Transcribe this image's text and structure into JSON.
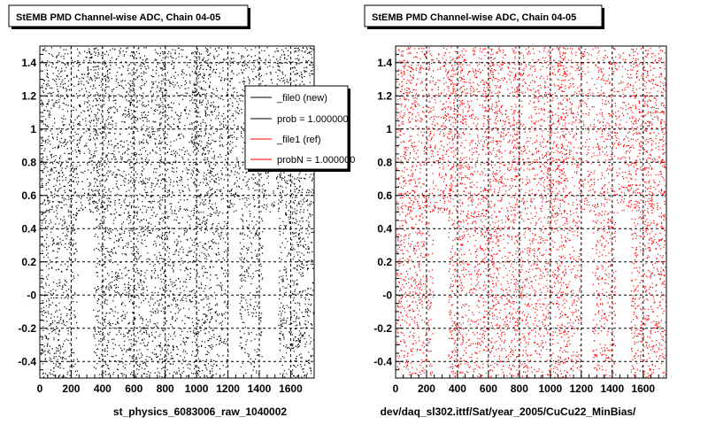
{
  "chart_data": [
    {
      "type": "scatter",
      "title": "StEMB PMD Channel-wise ADC, Chain 04-05",
      "xlabel": "st_physics_6083006_raw_1040002",
      "ylabel": "",
      "xlim": [
        0,
        1750
      ],
      "ylim": [
        -0.5,
        1.5
      ],
      "xticks": [
        "0",
        "200",
        "400",
        "600",
        "800",
        "1000",
        "1200",
        "1400",
        "1600"
      ],
      "yticks": [
        "-0.4",
        "-0.2",
        "-0",
        "0.2",
        "0.4",
        "0.6",
        "0.8",
        "1",
        "1.2",
        "1.4"
      ],
      "grid": true,
      "legend_position": "top-right",
      "series": [
        {
          "name": "_file0 (new)",
          "color": "#000000",
          "dense_bands": [
            [
              0,
              60
            ],
            [
              80,
              130
            ],
            [
              300,
              380
            ],
            [
              400,
              440
            ],
            [
              560,
              620
            ],
            [
              640,
              680
            ],
            [
              760,
              800
            ],
            [
              980,
              1020
            ],
            [
              1040,
              1100
            ],
            [
              1500,
              1560
            ],
            [
              1600,
              1660
            ],
            [
              1700,
              1740
            ]
          ],
          "lower_gaps": [
            [
              240,
              340
            ],
            [
              1200,
              1270
            ],
            [
              1420,
              1520
            ]
          ]
        }
      ],
      "legend": [
        {
          "label": "_file0 (new)",
          "color": "#000000"
        },
        {
          "label": "prob = 1.000000",
          "color": "#000000"
        },
        {
          "label": "_file1 (ref)",
          "color": "#ff0000"
        },
        {
          "label": "probN = 1.000000",
          "color": "#ff0000"
        }
      ]
    },
    {
      "type": "scatter",
      "title": "StEMB PMD Channel-wise ADC, Chain 04-05",
      "xlabel": "dev/daq_sl302.ittf/Sat/year_2005/CuCu22_MinBias/",
      "ylabel": "",
      "xlim": [
        0,
        1750
      ],
      "ylim": [
        -0.5,
        1.5
      ],
      "xticks": [
        "0",
        "200",
        "400",
        "600",
        "800",
        "1000",
        "1200",
        "1400",
        "1600"
      ],
      "yticks": [
        "-0.4",
        "-0.2",
        "-0",
        "0.2",
        "0.4",
        "0.6",
        "0.8",
        "1",
        "1.2",
        "1.4"
      ],
      "grid": true,
      "series": [
        {
          "name": "_file1 (ref)",
          "color": "#ff0000",
          "dense_bands": [
            [
              0,
              60
            ],
            [
              80,
              130
            ],
            [
              300,
              380
            ],
            [
              400,
              440
            ],
            [
              560,
              620
            ],
            [
              640,
              680
            ],
            [
              760,
              800
            ],
            [
              980,
              1020
            ],
            [
              1040,
              1100
            ],
            [
              1500,
              1560
            ],
            [
              1600,
              1660
            ],
            [
              1700,
              1740
            ]
          ],
          "lower_gaps": [
            [
              240,
              340
            ],
            [
              1200,
              1270
            ],
            [
              1420,
              1520
            ]
          ]
        }
      ]
    }
  ]
}
